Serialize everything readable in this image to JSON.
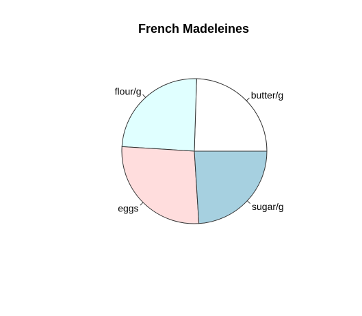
{
  "chart_data": {
    "type": "pie",
    "title": "French Madeleines",
    "categories": [
      "butter/g",
      "flour/g",
      "eggs",
      "sugar/g"
    ],
    "values": [
      24.5,
      24.5,
      27.0,
      24.0
    ],
    "colors": [
      "#ffffff",
      "#e0ffff",
      "#ffdddd",
      "#a6d0e0"
    ],
    "border_color": "#333333",
    "start_angle_deg": 0,
    "direction": "counterclockwise"
  }
}
